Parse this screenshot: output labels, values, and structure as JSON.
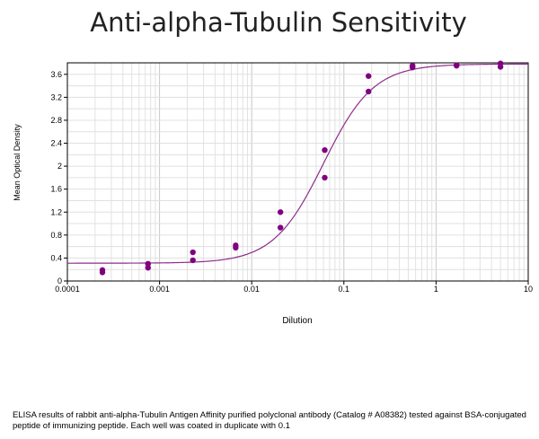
{
  "chart_data": {
    "type": "scatter",
    "title": "Anti-alpha-Tubulin Sensitivity",
    "xlabel": "Dilution",
    "ylabel": "Mean Optical Density",
    "x_scale": "log",
    "xlim": [
      0.0001,
      10
    ],
    "ylim": [
      0,
      3.8
    ],
    "x_ticks": [
      "0.0001",
      "0.001",
      "0.01",
      "0.1",
      "1",
      "10"
    ],
    "y_ticks": [
      "0",
      "0.4",
      "0.8",
      "1.2",
      "1.6",
      "2",
      "2.4",
      "2.8",
      "3.2",
      "3.6"
    ],
    "grid": true,
    "point_color": "#800080",
    "curve_color": "#8b2d8b",
    "points": [
      {
        "x": 0.00024,
        "y": 0.19
      },
      {
        "x": 0.00024,
        "y": 0.15
      },
      {
        "x": 0.00075,
        "y": 0.3
      },
      {
        "x": 0.00075,
        "y": 0.23
      },
      {
        "x": 0.0023,
        "y": 0.5
      },
      {
        "x": 0.0023,
        "y": 0.36
      },
      {
        "x": 0.0067,
        "y": 0.62
      },
      {
        "x": 0.0067,
        "y": 0.58
      },
      {
        "x": 0.0205,
        "y": 1.2
      },
      {
        "x": 0.0205,
        "y": 0.93
      },
      {
        "x": 0.062,
        "y": 2.28
      },
      {
        "x": 0.062,
        "y": 1.8
      },
      {
        "x": 0.185,
        "y": 3.57
      },
      {
        "x": 0.185,
        "y": 3.3
      },
      {
        "x": 0.555,
        "y": 3.75
      },
      {
        "x": 0.555,
        "y": 3.72
      },
      {
        "x": 1.67,
        "y": 3.76
      },
      {
        "x": 1.67,
        "y": 3.75
      },
      {
        "x": 5.0,
        "y": 3.79
      },
      {
        "x": 5.0,
        "y": 3.73
      }
    ],
    "fit_curve": {
      "model": "4PL",
      "bottom": 0.31,
      "top": 3.78,
      "ec50": 0.06,
      "hill": 1.6
    }
  },
  "caption": "ELISA results of rabbit anti-alpha-Tubulin Antigen Affinity purified polyclonal antibody (Catalog # A08382) tested against BSA-conjugated peptide of immunizing peptide. Each well was coated in duplicate with 0.1"
}
